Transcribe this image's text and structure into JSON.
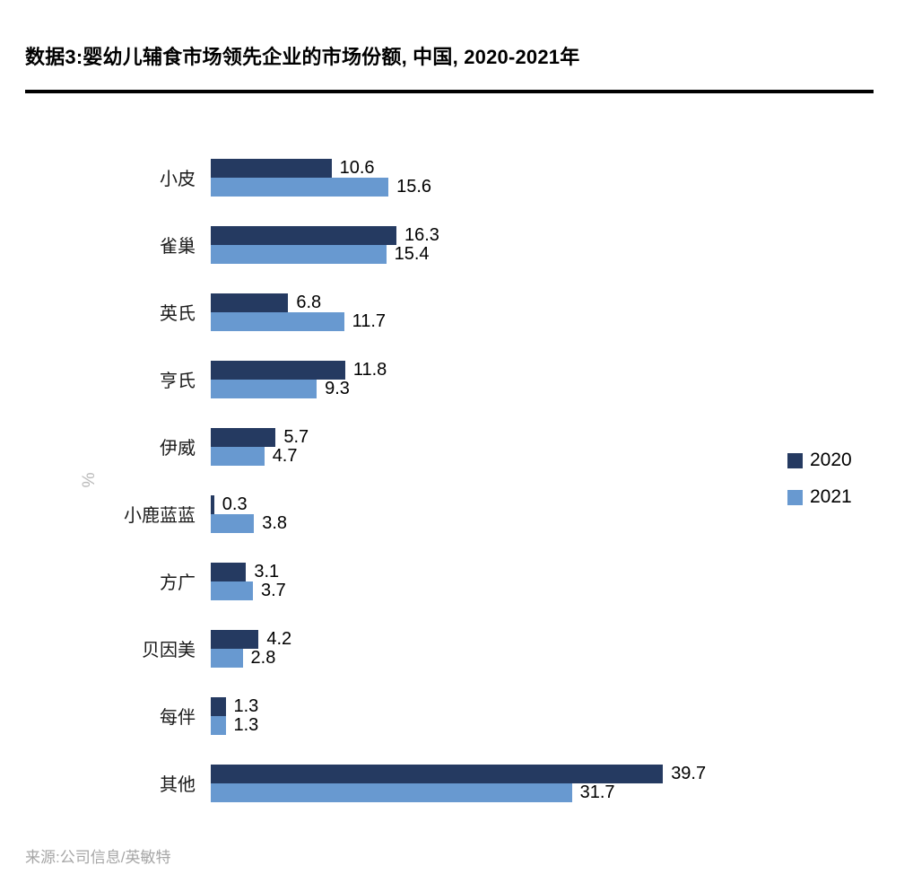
{
  "title": "数据3:婴幼儿辅食市场领先企业的市场份额, 中国, 2020-2021年",
  "source": "来源:公司信息/英敏特",
  "axis": {
    "unit_label": "%"
  },
  "colors": {
    "series_2020": "#253A61",
    "series_2021": "#6899D0"
  },
  "legend": [
    {
      "label": "2020",
      "color": "#253A61"
    },
    {
      "label": "2021",
      "color": "#6899D0"
    }
  ],
  "chart_data": {
    "type": "bar",
    "orientation": "horizontal",
    "title": "数据3:婴幼儿辅食市场领先企业的市场份额, 中国, 2020-2021年",
    "categories": [
      "小皮",
      "雀巢",
      "英氏",
      "亨氏",
      "伊威",
      "小鹿蓝蓝",
      "方广",
      "贝因美",
      "每伴",
      "其他"
    ],
    "series": [
      {
        "name": "2020",
        "color": "#253A61",
        "values": [
          10.6,
          16.3,
          6.8,
          11.8,
          5.7,
          0.3,
          3.1,
          4.2,
          1.3,
          39.7
        ]
      },
      {
        "name": "2021",
        "color": "#6899D0",
        "values": [
          15.6,
          15.4,
          11.7,
          9.3,
          4.7,
          3.8,
          3.7,
          2.8,
          1.3,
          31.7
        ]
      }
    ],
    "value_axis": {
      "label": "%",
      "min": 0,
      "max": 45
    },
    "data_labels": true,
    "grid": false,
    "legend_position": "right"
  }
}
